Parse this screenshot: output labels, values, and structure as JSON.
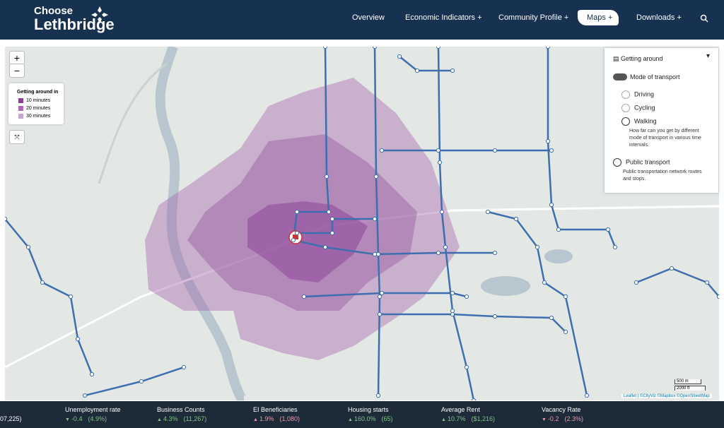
{
  "header": {
    "logo": [
      "Choose",
      "Lethbridge"
    ],
    "nav": [
      "Overview",
      "Economic Indicators +",
      "Community Profile +",
      "Maps +",
      "Downloads +"
    ]
  },
  "map": {
    "zoom": [
      "+",
      "−"
    ],
    "legend": {
      "title": "Getting around in",
      "items": [
        "10 minutes",
        "20 minutes",
        "30 minutes"
      ]
    },
    "panel": {
      "title": "Getting around",
      "mode": "Mode of transport",
      "options": [
        "Driving",
        "Cycling",
        "Walking"
      ],
      "walking_desc": "How far can you get by different mode of transport in various time intervals.",
      "transit": "Public transport",
      "transit_desc": "Public transportation network routes and stops."
    },
    "scale": [
      "500 m",
      "2000 ft"
    ],
    "attribution": "Leaflet | ©CityViz ©Mapbox ©OpenStreetMap"
  },
  "ticker": {
    "partial": "07,225)",
    "items": [
      {
        "label": "Unemployment rate",
        "change": "-0.4",
        "value": "(4.9%)"
      },
      {
        "label": "Business Counts",
        "change": "4.3%",
        "value": "(11,267)"
      },
      {
        "label": "EI Beneficiaries",
        "change": "1.9%",
        "value": "(1,080)"
      },
      {
        "label": "Housing starts",
        "change": "160.0%",
        "value": "(65)"
      },
      {
        "label": "Average Rent",
        "change": "10.7%",
        "value": "($1,216)"
      },
      {
        "label": "Vacancy Rate",
        "change": "-0.2",
        "value": "(2.3%)"
      }
    ]
  }
}
